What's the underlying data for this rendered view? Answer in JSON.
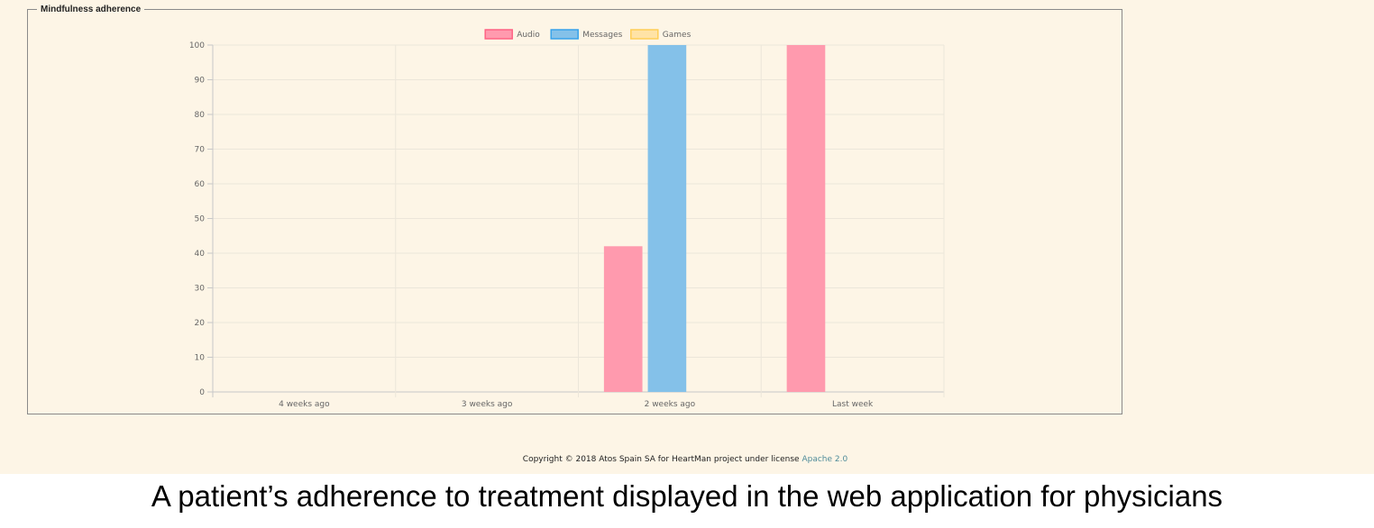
{
  "panel": {
    "legend": "Mindfulness adherence"
  },
  "chart_data": {
    "type": "bar",
    "categories": [
      "4 weeks ago",
      "3 weeks ago",
      "2 weeks ago",
      "Last week"
    ],
    "series": [
      {
        "name": "Audio",
        "values": [
          0,
          0,
          42,
          100
        ],
        "color": "#ff9aae",
        "border": "#ff6384"
      },
      {
        "name": "Messages",
        "values": [
          0,
          0,
          100,
          0
        ],
        "color": "#84c1e9",
        "border": "#36a2eb"
      },
      {
        "name": "Games",
        "values": [
          0,
          0,
          0,
          0
        ],
        "color": "#ffe3a6",
        "border": "#ffce56"
      }
    ],
    "ylim": [
      0,
      100
    ],
    "yticks": [
      "0",
      "10",
      "20",
      "30",
      "40",
      "50",
      "60",
      "70",
      "80",
      "90",
      "100"
    ],
    "legend_position": "top",
    "grid": true
  },
  "footer": {
    "text": "Copyright © 2018 Atos Spain SA for HeartMan project under license ",
    "link_text": "Apache 2.0"
  },
  "caption": "A patient’s adherence to treatment displayed in the web application for physicians"
}
